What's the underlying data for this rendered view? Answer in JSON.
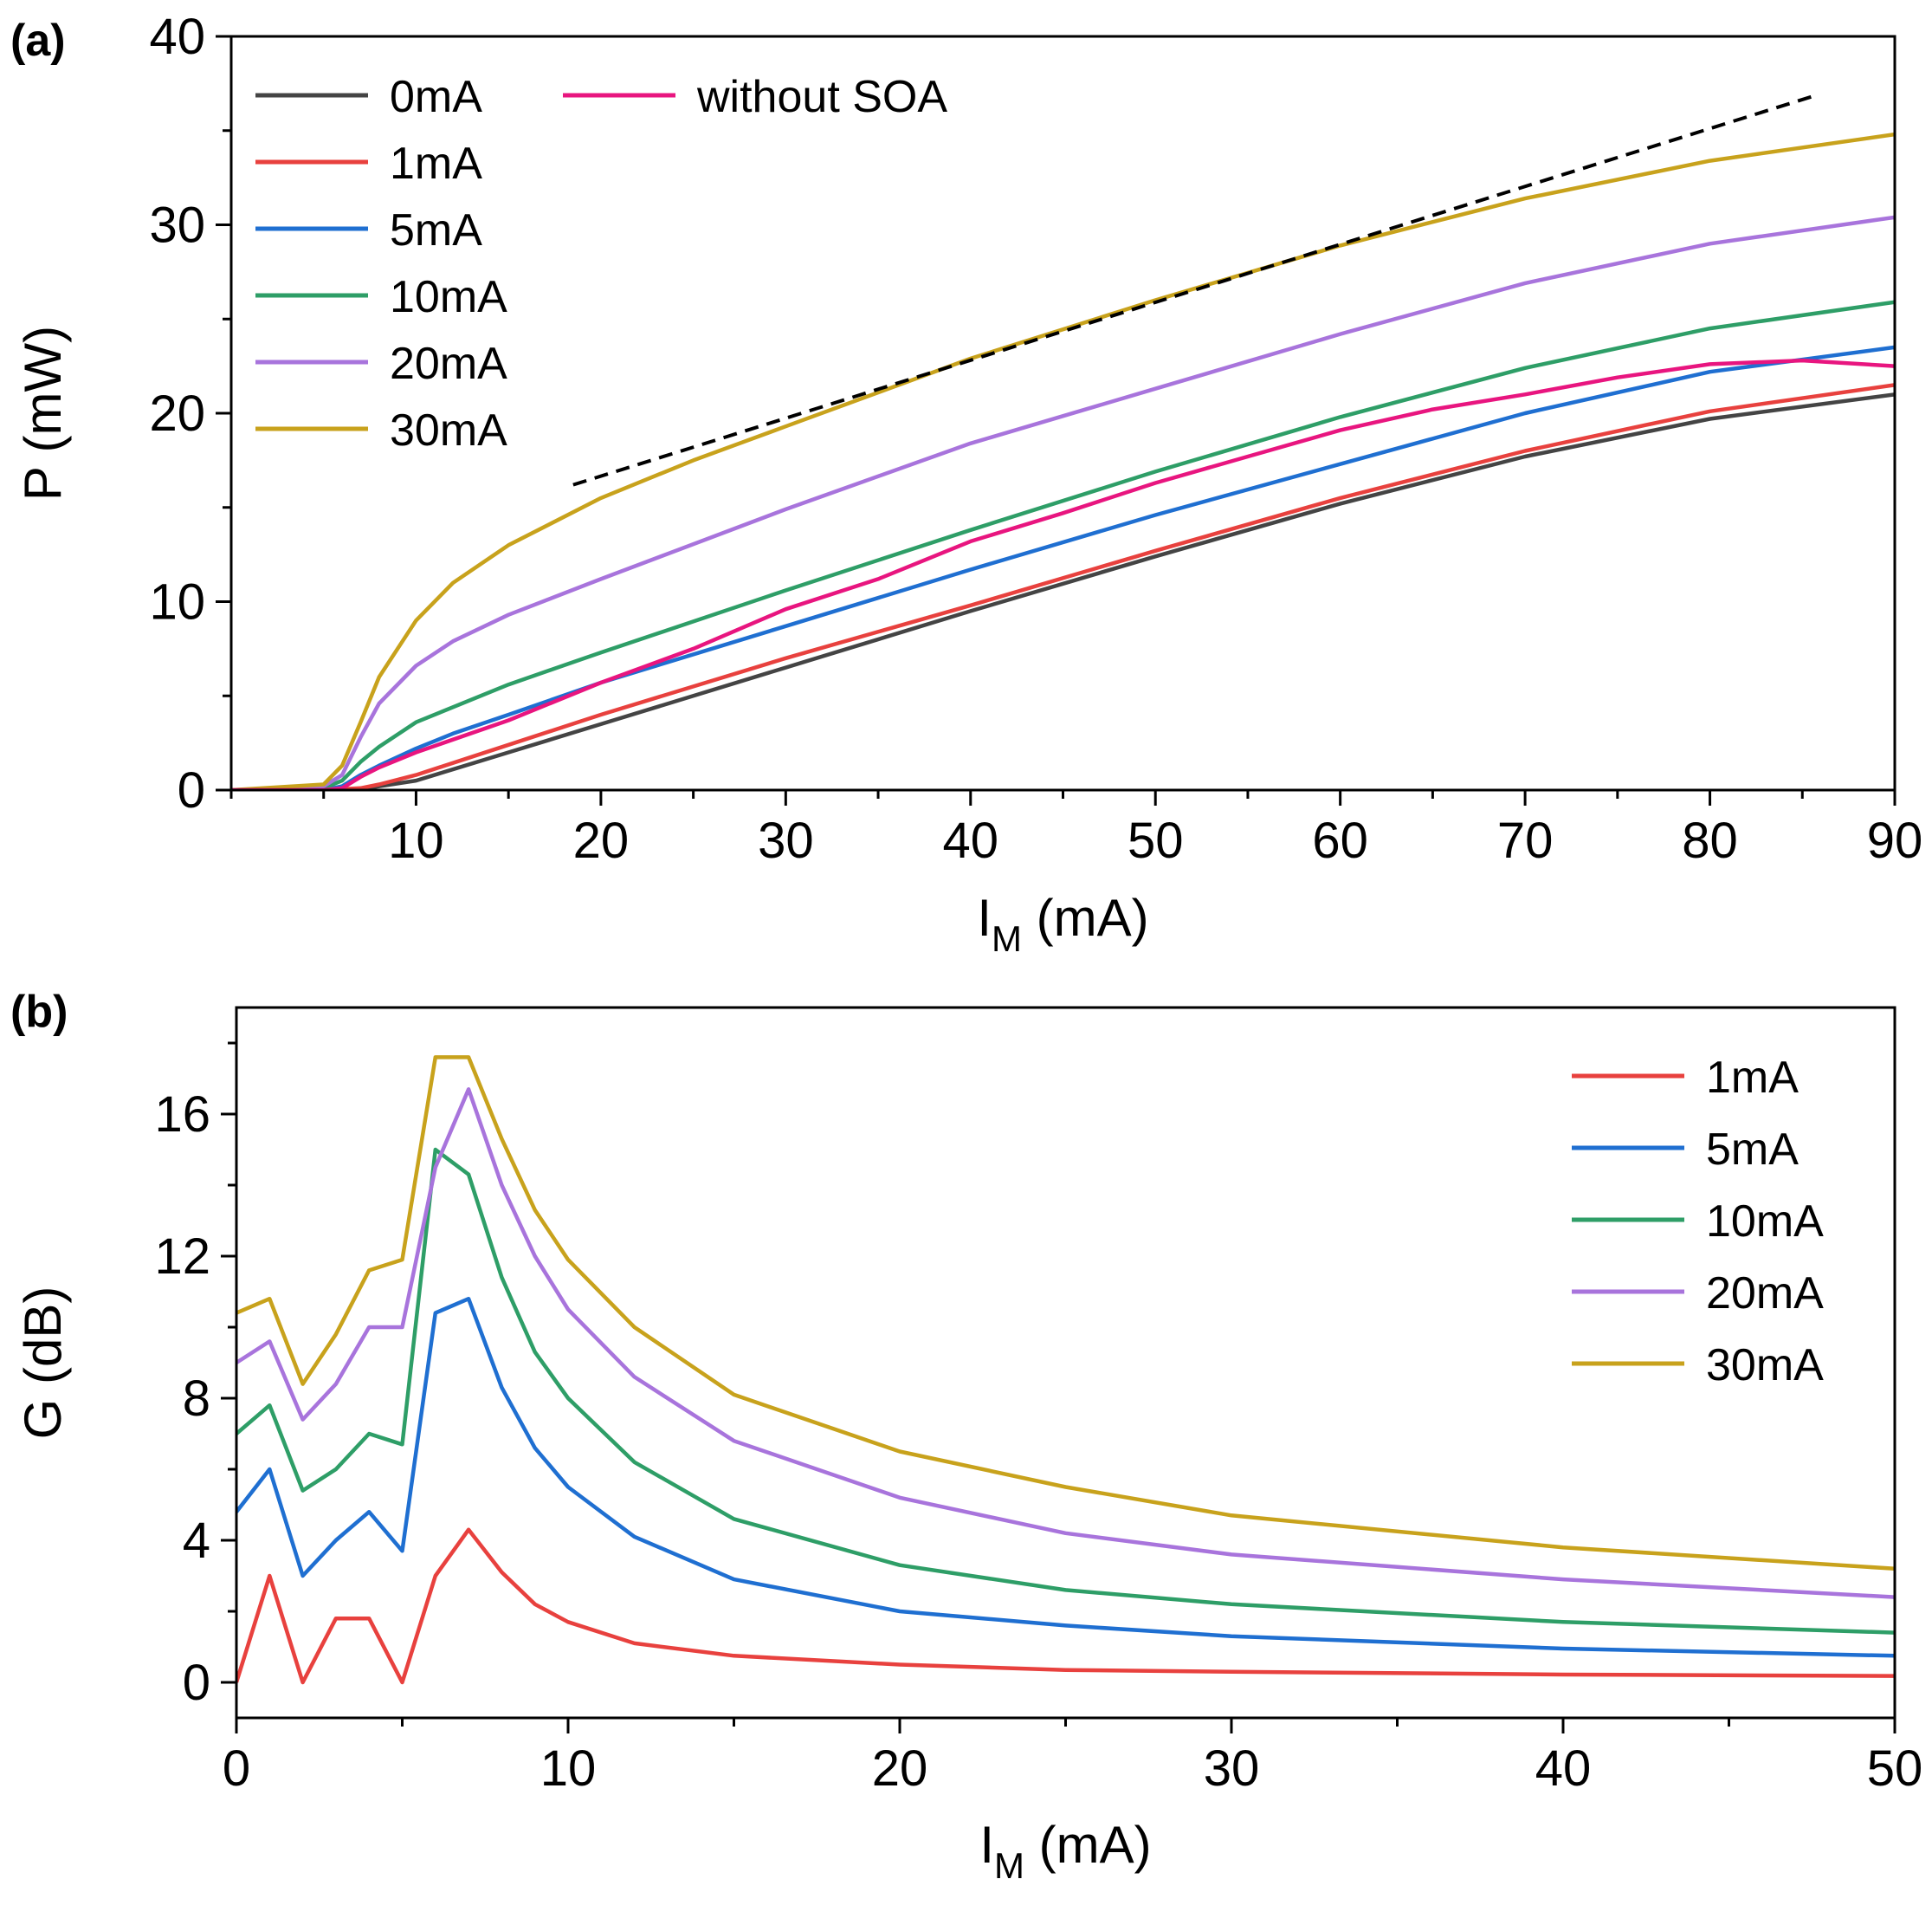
{
  "chart_data": [
    {
      "panel": "(a)",
      "type": "line",
      "xlabel": "I",
      "xlabel_sub": "M",
      "xlabel_unit": " (mA)",
      "ylabel": "P (mW)",
      "xlim": [
        0,
        90
      ],
      "ylim": [
        0,
        40
      ],
      "xticks": [
        10,
        20,
        30,
        40,
        50,
        60,
        70,
        80,
        90
      ],
      "yticks": [
        0,
        10,
        20,
        30,
        40
      ],
      "legend": "top-left",
      "series": [
        {
          "name": "0mA",
          "color": "#444444",
          "x": [
            0,
            5,
            7,
            8,
            10,
            15,
            20,
            30,
            40,
            50,
            60,
            70,
            80,
            90
          ],
          "y": [
            0,
            0,
            0.05,
            0.2,
            0.5,
            2.0,
            3.5,
            6.5,
            9.5,
            12.4,
            15.2,
            17.7,
            19.7,
            21.0
          ]
        },
        {
          "name": "1mA",
          "color": "#e8413e",
          "x": [
            0,
            5,
            7,
            8,
            10,
            15,
            20,
            30,
            40,
            50,
            60,
            70,
            80,
            90
          ],
          "y": [
            0,
            0,
            0.1,
            0.3,
            0.8,
            2.4,
            4.0,
            7.0,
            9.8,
            12.7,
            15.5,
            18.0,
            20.1,
            21.5
          ]
        },
        {
          "name": "5mA",
          "color": "#1f6fd1",
          "x": [
            0,
            5,
            6,
            7,
            8,
            10,
            12,
            15,
            20,
            30,
            40,
            50,
            60,
            70,
            80,
            90
          ],
          "y": [
            0,
            0,
            0.2,
            0.8,
            1.3,
            2.2,
            3.0,
            4.0,
            5.7,
            8.7,
            11.7,
            14.6,
            17.3,
            20.0,
            22.2,
            23.5
          ]
        },
        {
          "name": "10mA",
          "color": "#2e9e67",
          "x": [
            0,
            5,
            6,
            7,
            8,
            10,
            15,
            20,
            30,
            40,
            50,
            60,
            70,
            80,
            90
          ],
          "y": [
            0,
            0.1,
            0.5,
            1.5,
            2.3,
            3.6,
            5.6,
            7.3,
            10.6,
            13.8,
            16.9,
            19.8,
            22.4,
            24.5,
            25.9
          ]
        },
        {
          "name": "20mA",
          "color": "#a874dc",
          "x": [
            0,
            5,
            6,
            7,
            8,
            10,
            12,
            15,
            20,
            30,
            40,
            50,
            60,
            70,
            80,
            90
          ],
          "y": [
            0,
            0.2,
            0.8,
            2.8,
            4.6,
            6.6,
            7.9,
            9.3,
            11.2,
            14.9,
            18.4,
            21.3,
            24.2,
            26.9,
            29.0,
            30.4
          ]
        },
        {
          "name": "30mA",
          "color": "#c8a21c",
          "x": [
            0,
            5,
            6,
            7,
            8,
            10,
            12,
            15,
            20,
            25,
            30,
            40,
            50,
            60,
            70,
            80,
            90
          ],
          "y": [
            0,
            0.3,
            1.3,
            3.6,
            6.0,
            9.0,
            11.0,
            13.0,
            15.5,
            17.5,
            19.3,
            22.9,
            26.0,
            28.9,
            31.4,
            33.4,
            34.8
          ]
        },
        {
          "name": "without SOA",
          "color": "#e8157f",
          "x": [
            0,
            5,
            6,
            7,
            8,
            10,
            15,
            20,
            25,
            30,
            35,
            40,
            45,
            50,
            55,
            60,
            65,
            70,
            75,
            80,
            85,
            90
          ],
          "y": [
            0,
            0,
            0.1,
            0.7,
            1.2,
            2.0,
            3.7,
            5.7,
            7.5,
            9.6,
            11.2,
            13.2,
            14.7,
            16.3,
            17.7,
            19.1,
            20.2,
            21.0,
            21.9,
            22.6,
            22.8,
            22.5
          ]
        }
      ],
      "reference_line": {
        "style": "dashed",
        "color": "#000000",
        "x": [
          18.5,
          85.5
        ],
        "y": [
          16.2,
          36.8
        ]
      }
    },
    {
      "panel": "(b)",
      "type": "line",
      "xlabel": "I",
      "xlabel_sub": "M",
      "xlabel_unit": " (mA)",
      "ylabel": "G (dB)",
      "xlim": [
        0,
        50
      ],
      "ylim": [
        -1,
        19
      ],
      "xticks": [
        0,
        10,
        20,
        30,
        40,
        50
      ],
      "yticks": [
        0,
        4,
        8,
        12,
        16
      ],
      "legend": "top-right",
      "series": [
        {
          "name": "1mA",
          "color": "#e8413e",
          "x": [
            0,
            1,
            2,
            3,
            4,
            5,
            6,
            7,
            8,
            9,
            10,
            12,
            15,
            20,
            25,
            30,
            40,
            50
          ],
          "y": [
            0,
            3.0,
            0,
            1.8,
            1.8,
            0,
            3.0,
            4.3,
            3.1,
            2.2,
            1.7,
            1.1,
            0.75,
            0.5,
            0.35,
            0.3,
            0.22,
            0.18
          ]
        },
        {
          "name": "5mA",
          "color": "#1f6fd1",
          "x": [
            0,
            1,
            2,
            3,
            4,
            5,
            6,
            7,
            8,
            9,
            10,
            12,
            15,
            20,
            25,
            30,
            40,
            50
          ],
          "y": [
            4.8,
            6.0,
            3.0,
            4.0,
            4.8,
            3.7,
            10.4,
            10.8,
            8.3,
            6.6,
            5.5,
            4.1,
            2.9,
            2.0,
            1.6,
            1.3,
            0.95,
            0.75
          ]
        },
        {
          "name": "10mA",
          "color": "#2e9e67",
          "x": [
            0,
            1,
            2,
            3,
            4,
            5,
            6,
            7,
            8,
            9,
            10,
            12,
            15,
            20,
            25,
            30,
            40,
            50
          ],
          "y": [
            7.0,
            7.8,
            5.4,
            6.0,
            7.0,
            6.7,
            15.0,
            14.3,
            11.4,
            9.3,
            8.0,
            6.2,
            4.6,
            3.3,
            2.6,
            2.2,
            1.7,
            1.4
          ]
        },
        {
          "name": "20mA",
          "color": "#a874dc",
          "x": [
            0,
            1,
            2,
            3,
            4,
            5,
            6,
            7,
            8,
            9,
            10,
            12,
            15,
            20,
            25,
            30,
            40,
            50
          ],
          "y": [
            9.0,
            9.6,
            7.4,
            8.4,
            10.0,
            10.0,
            14.5,
            16.7,
            14.0,
            12.0,
            10.5,
            8.6,
            6.8,
            5.2,
            4.2,
            3.6,
            2.9,
            2.4
          ]
        },
        {
          "name": "30mA",
          "color": "#c8a21c",
          "x": [
            0,
            1,
            2,
            3,
            4,
            5,
            6,
            7,
            8,
            9,
            10,
            12,
            15,
            20,
            25,
            30,
            40,
            50
          ],
          "y": [
            10.4,
            10.8,
            8.4,
            9.8,
            11.6,
            11.9,
            17.6,
            17.6,
            15.3,
            13.3,
            11.9,
            10.0,
            8.1,
            6.5,
            5.5,
            4.7,
            3.8,
            3.2
          ]
        }
      ]
    }
  ]
}
